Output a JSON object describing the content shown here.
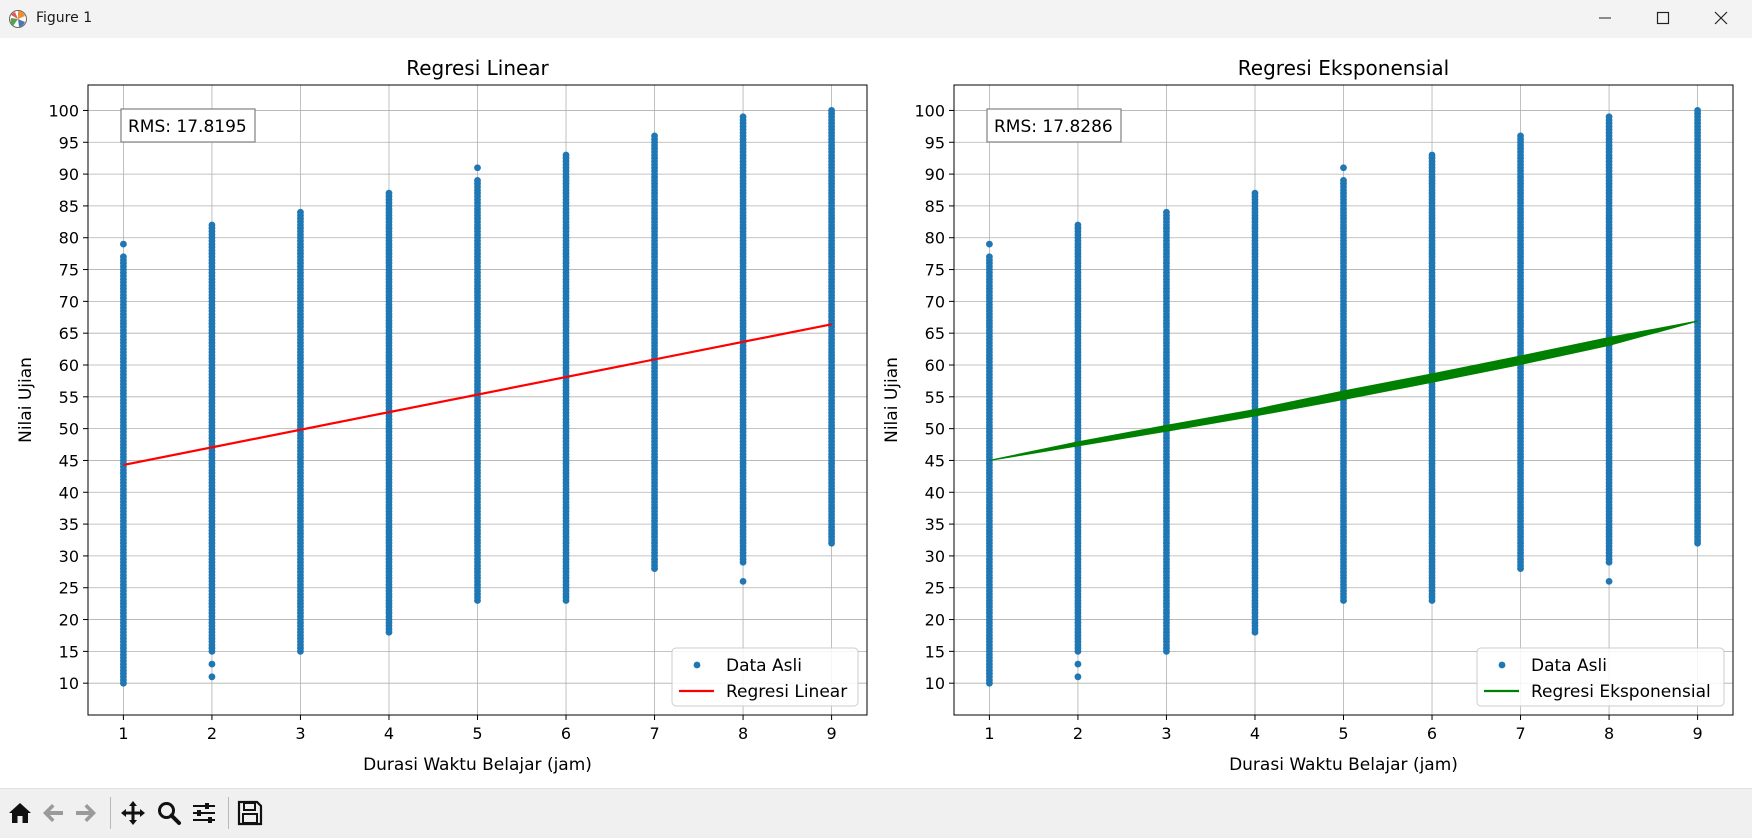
{
  "window": {
    "title": "Figure 1"
  },
  "toolbar": {
    "icons": [
      "home-icon",
      "back-icon",
      "forward-icon",
      "pan-icon",
      "zoom-icon",
      "configure-subplots-icon",
      "save-icon"
    ]
  },
  "chart_data": [
    {
      "type": "scatter",
      "title": "Regresi Linear",
      "xlabel": "Durasi Waktu Belajar (jam)",
      "ylabel": "Nilai Ujian",
      "xlim": [
        0.6,
        9.4
      ],
      "ylim": [
        5,
        104
      ],
      "xticks": [
        "1",
        "2",
        "3",
        "4",
        "5",
        "6",
        "7",
        "8",
        "9"
      ],
      "yticks": [
        "10",
        "15",
        "20",
        "25",
        "30",
        "35",
        "40",
        "45",
        "50",
        "55",
        "60",
        "65",
        "70",
        "75",
        "80",
        "85",
        "90",
        "95",
        "100"
      ],
      "grid": true,
      "legend_position": "lower right",
      "annotation": "RMS: 17.8195",
      "series": [
        {
          "name": "Data Asli",
          "kind": "scatter",
          "color": "#1f77b4",
          "clusters": [
            {
              "x": 1,
              "y_min": 10,
              "y_max": 77,
              "extra": [
                79
              ]
            },
            {
              "x": 2,
              "y_min": 15,
              "y_max": 82,
              "extra": [
                13,
                11
              ]
            },
            {
              "x": 3,
              "y_min": 15,
              "y_max": 84,
              "extra": []
            },
            {
              "x": 4,
              "y_min": 18,
              "y_max": 87,
              "extra": []
            },
            {
              "x": 5,
              "y_min": 23,
              "y_max": 89,
              "extra": [
                91
              ]
            },
            {
              "x": 6,
              "y_min": 23,
              "y_max": 93,
              "extra": []
            },
            {
              "x": 7,
              "y_min": 28,
              "y_max": 96,
              "extra": []
            },
            {
              "x": 8,
              "y_min": 29,
              "y_max": 99,
              "extra": [
                26
              ]
            },
            {
              "x": 9,
              "y_min": 32,
              "y_max": 100,
              "extra": []
            }
          ]
        },
        {
          "name": "Regresi Linear",
          "kind": "line",
          "color": "#ff0000",
          "x": [
            1,
            9
          ],
          "y": [
            44.3,
            66.4
          ]
        }
      ]
    },
    {
      "type": "scatter",
      "title": "Regresi Eksponensial",
      "xlabel": "Durasi Waktu Belajar (jam)",
      "ylabel": "Nilai Ujian",
      "xlim": [
        0.6,
        9.4
      ],
      "ylim": [
        5,
        104
      ],
      "xticks": [
        "1",
        "2",
        "3",
        "4",
        "5",
        "6",
        "7",
        "8",
        "9"
      ],
      "yticks": [
        "10",
        "15",
        "20",
        "25",
        "30",
        "35",
        "40",
        "45",
        "50",
        "55",
        "60",
        "65",
        "70",
        "75",
        "80",
        "85",
        "90",
        "95",
        "100"
      ],
      "grid": true,
      "legend_position": "lower right",
      "annotation": "RMS: 17.8286",
      "series": [
        {
          "name": "Data Asli",
          "kind": "scatter",
          "color": "#1f77b4",
          "clusters": [
            {
              "x": 1,
              "y_min": 10,
              "y_max": 77,
              "extra": [
                79
              ]
            },
            {
              "x": 2,
              "y_min": 15,
              "y_max": 82,
              "extra": [
                13,
                11
              ]
            },
            {
              "x": 3,
              "y_min": 15,
              "y_max": 84,
              "extra": []
            },
            {
              "x": 4,
              "y_min": 18,
              "y_max": 87,
              "extra": []
            },
            {
              "x": 5,
              "y_min": 23,
              "y_max": 89,
              "extra": [
                91
              ]
            },
            {
              "x": 6,
              "y_min": 23,
              "y_max": 93,
              "extra": []
            },
            {
              "x": 7,
              "y_min": 28,
              "y_max": 96,
              "extra": []
            },
            {
              "x": 8,
              "y_min": 29,
              "y_max": 99,
              "extra": [
                26
              ]
            },
            {
              "x": 9,
              "y_min": 32,
              "y_max": 100,
              "extra": []
            }
          ]
        },
        {
          "name": "Regresi Eksponensial",
          "kind": "band",
          "color": "#008000",
          "x": [
            1,
            2,
            3,
            4,
            5,
            6,
            7,
            8,
            9
          ],
          "y_low": [
            45,
            47.3,
            49.6,
            52.0,
            54.6,
            57.3,
            60.1,
            63.1,
            66.9
          ],
          "y_high": [
            45,
            47.9,
            50.5,
            53.0,
            55.9,
            58.6,
            61.4,
            64.3,
            66.9
          ]
        }
      ]
    }
  ]
}
